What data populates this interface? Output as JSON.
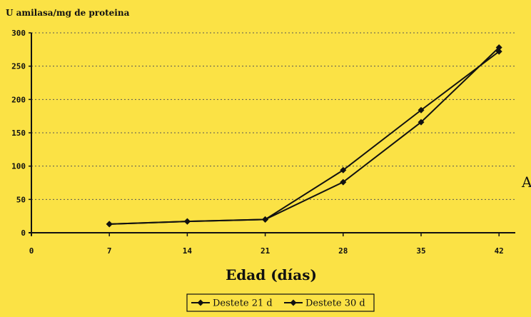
{
  "colors": {
    "background": "#fbe245",
    "ink": "#111111",
    "gridline": "#555555"
  },
  "edge_fragment": "A",
  "chart_data": {
    "type": "line",
    "title": "",
    "ylabel": "U amilasa/mg de proteina",
    "xlabel": "Edad (días)",
    "x": [
      0,
      7,
      14,
      21,
      28,
      35,
      42
    ],
    "xticks": [
      "0",
      "7",
      "14",
      "21",
      "28",
      "35",
      "42"
    ],
    "yticks": [
      "0",
      "50",
      "100",
      "150",
      "200",
      "250",
      "300"
    ],
    "ylim": [
      0,
      300
    ],
    "xlim": [
      0,
      42
    ],
    "grid": "horizontal dotted",
    "legend_position": "bottom-center",
    "series": [
      {
        "name": "Destete 21 d",
        "marker": "diamond",
        "x": [
          7,
          14,
          21,
          28,
          35,
          42
        ],
        "values": [
          13,
          17,
          20,
          94,
          184,
          272
        ]
      },
      {
        "name": "Destete 30 d",
        "marker": "diamond",
        "x": [
          7,
          14,
          21,
          28,
          35,
          42
        ],
        "values": [
          13,
          17,
          20,
          76,
          166,
          278
        ]
      }
    ]
  }
}
